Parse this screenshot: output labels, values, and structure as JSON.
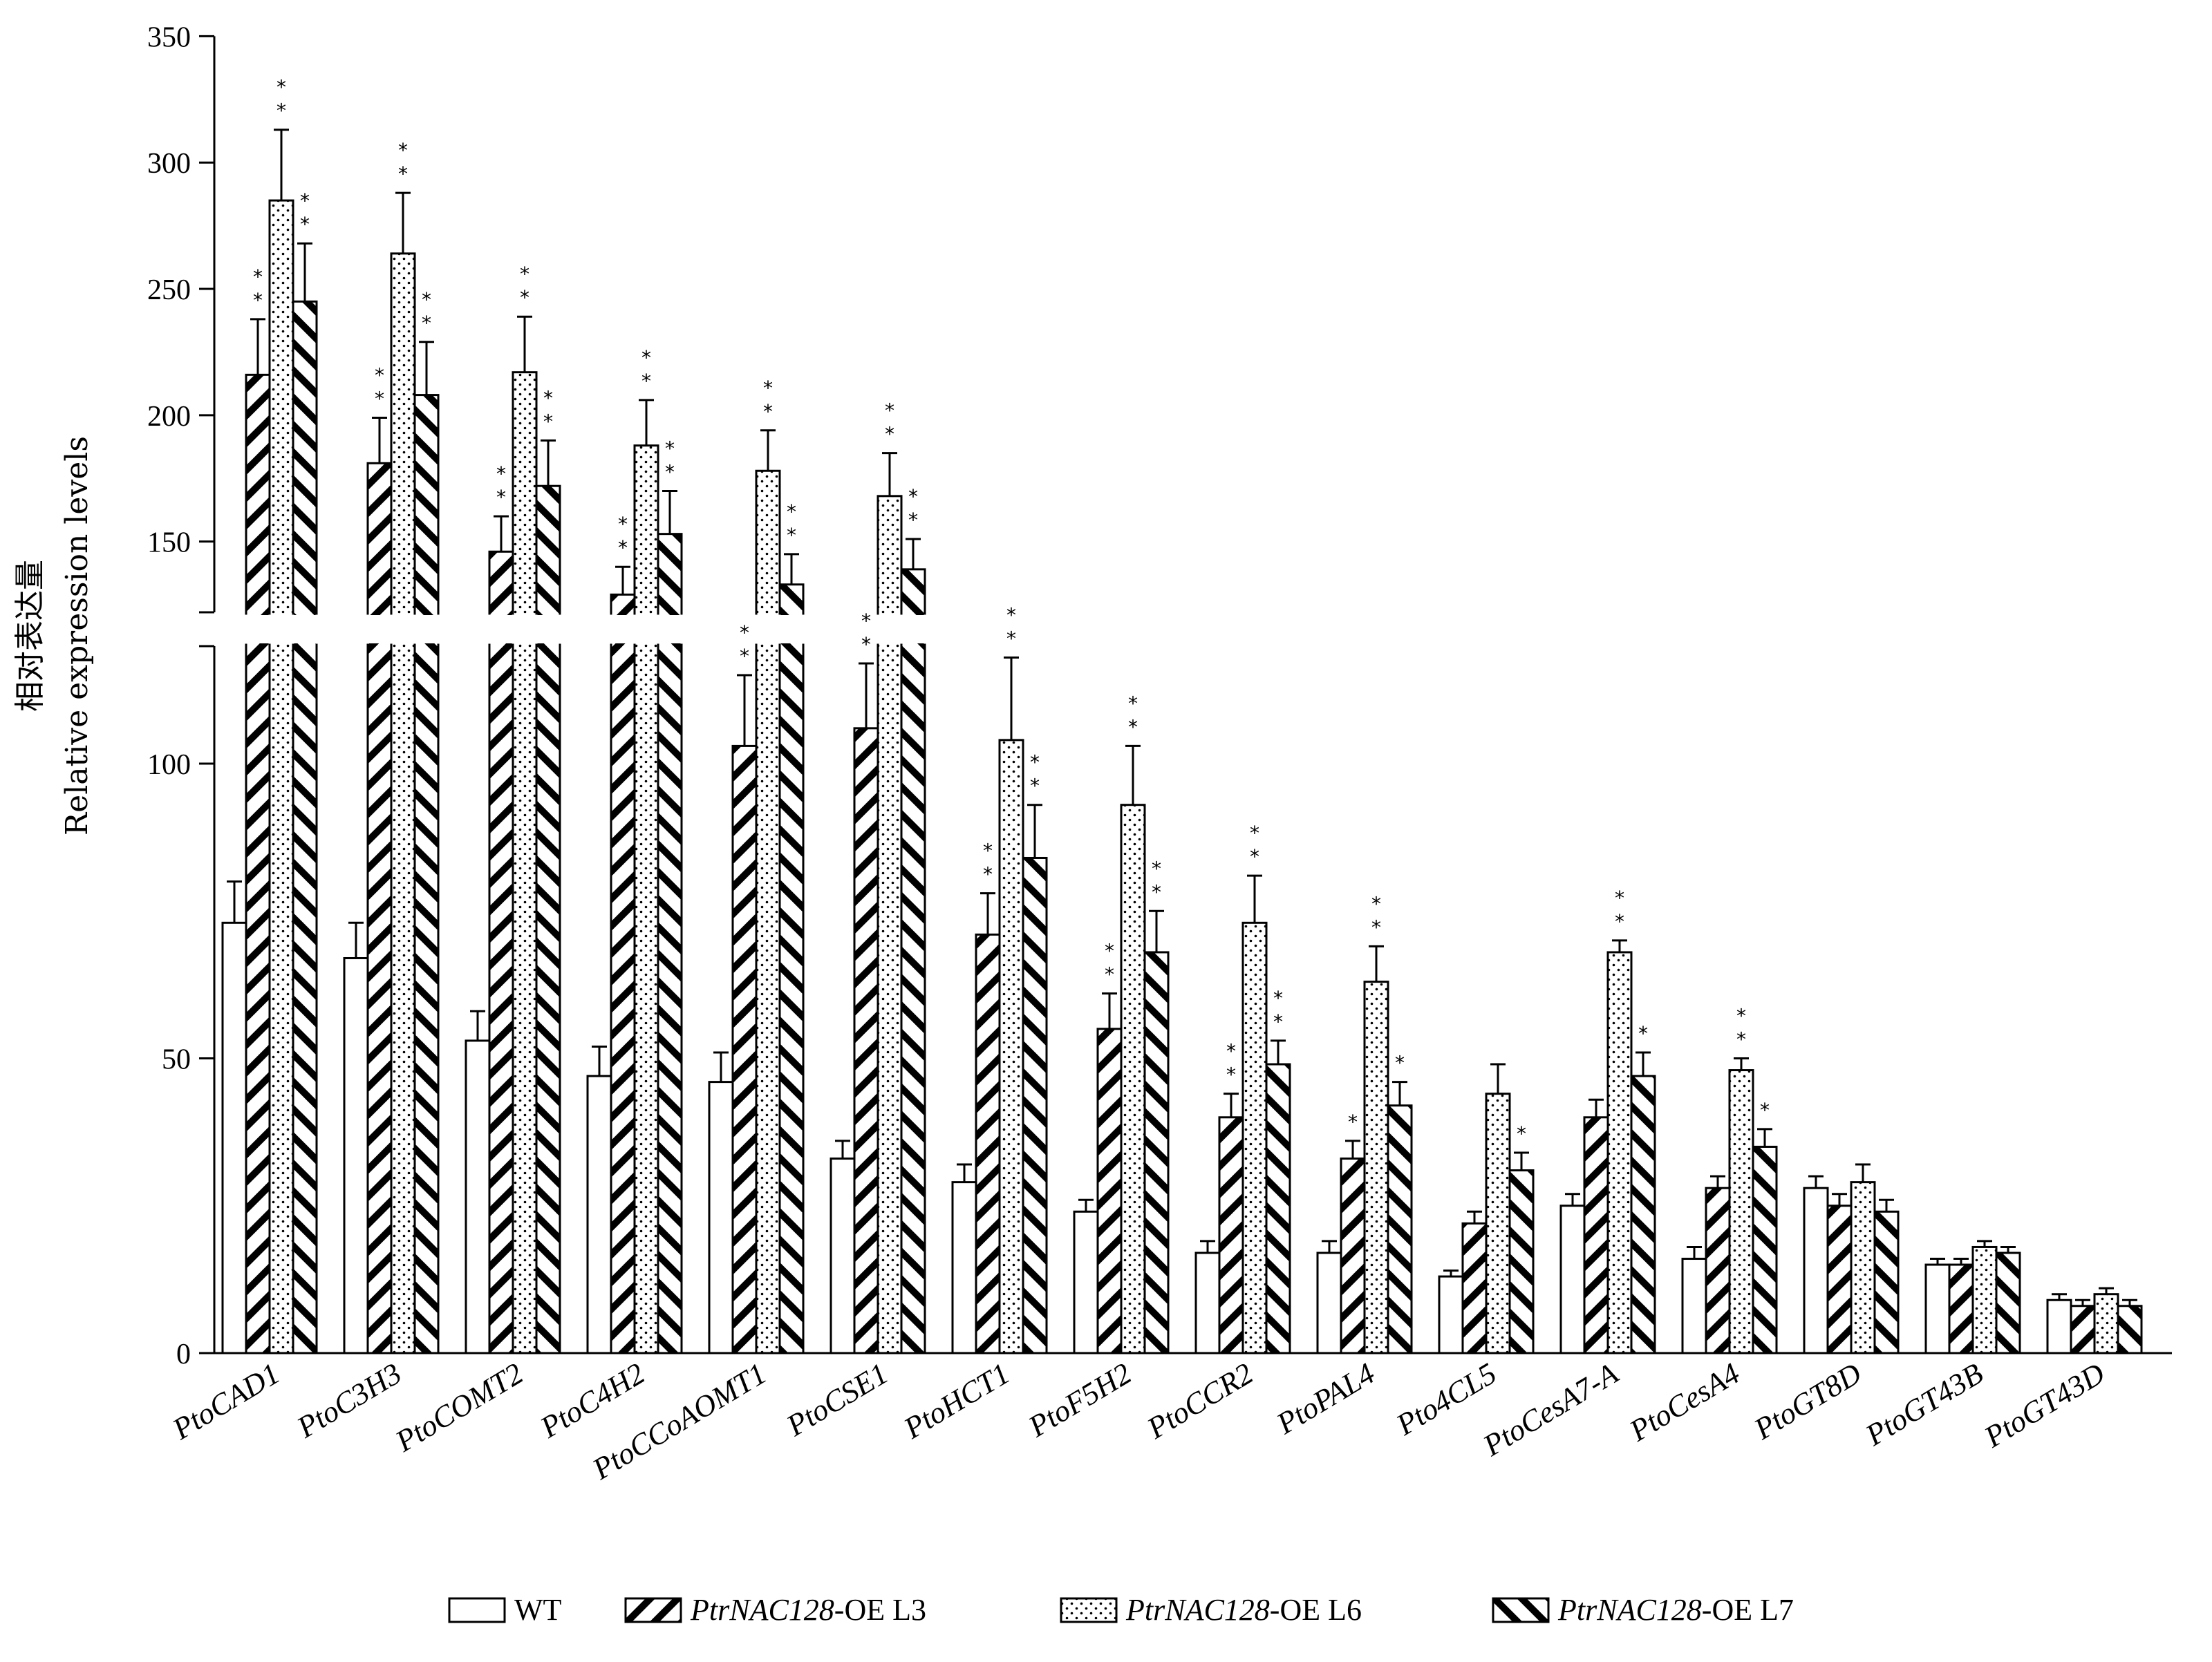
{
  "chart_data": {
    "type": "bar",
    "ylabel_cn": "相对表达量",
    "ylabel": "Relative expression levels",
    "xlabel": "",
    "y_axis_break": {
      "lower_range": [
        0,
        122
      ],
      "upper_range": [
        122,
        350
      ]
    },
    "yticks": [
      0,
      50,
      100,
      150,
      200,
      250,
      300,
      350
    ],
    "legend_position": "bottom",
    "categories": [
      "PtoCAD1",
      "PtoC3H3",
      "PtoCOMT2",
      "PtoC4H2",
      "PtoCCoAOMT1",
      "PtoCSE1",
      "PtoHCT1",
      "PtoF5H2",
      "PtoCCR2",
      "PtoPAL4",
      "Pto4CL5",
      "PtoCesA7-A",
      "PtoCesA4",
      "PtoGT8D",
      "PtoGT43B",
      "PtoGT43D"
    ],
    "series": [
      {
        "name": "WT",
        "legend_italic": "",
        "legend_rest": "WT",
        "pattern": "white",
        "values": [
          73,
          67,
          53,
          47,
          46,
          33,
          29,
          24,
          17,
          17,
          13,
          25,
          16,
          28,
          15,
          9
        ],
        "errors": [
          7,
          6,
          5,
          5,
          5,
          3,
          3,
          2,
          2,
          2,
          1,
          2,
          2,
          2,
          1,
          1
        ],
        "sig": [
          "",
          "",
          "",
          "",
          "",
          "",
          "",
          "",
          "",
          "",
          "",
          "",
          "",
          "",
          "",
          ""
        ]
      },
      {
        "name": "PtrNAC128-OE L3",
        "legend_italic": "PtrNAC128",
        "legend_rest": "-OE L3",
        "pattern": "hatch-right",
        "values": [
          216,
          181,
          146,
          129,
          103,
          106,
          71,
          55,
          40,
          33,
          22,
          40,
          28,
          25,
          15,
          8
        ],
        "errors": [
          22,
          18,
          14,
          11,
          12,
          11,
          7,
          6,
          4,
          3,
          2,
          3,
          2,
          2,
          1,
          1
        ],
        "sig": [
          "**",
          "**",
          "**",
          "**",
          "**",
          "**",
          "**",
          "**",
          "**",
          "*",
          "",
          "",
          "",
          "",
          "",
          ""
        ]
      },
      {
        "name": "PtrNAC128-OE L6",
        "legend_italic": "PtrNAC128",
        "legend_rest": "-OE L6",
        "pattern": "dots",
        "values": [
          285,
          264,
          217,
          188,
          178,
          168,
          104,
          93,
          73,
          63,
          44,
          68,
          48,
          29,
          18,
          10
        ],
        "errors": [
          28,
          24,
          22,
          18,
          16,
          17,
          14,
          10,
          8,
          6,
          5,
          2,
          2,
          3,
          1,
          1
        ],
        "sig": [
          "**",
          "**",
          "**",
          "**",
          "**",
          "**",
          "**",
          "**",
          "**",
          "**",
          "",
          "**",
          "**",
          "",
          "",
          ""
        ]
      },
      {
        "name": "PtrNAC128-OE L7",
        "legend_italic": "PtrNAC128",
        "legend_rest": "-OE L7",
        "pattern": "hatch-left",
        "values": [
          245,
          208,
          172,
          153,
          133,
          139,
          84,
          68,
          49,
          42,
          31,
          47,
          35,
          24,
          17,
          8
        ],
        "errors": [
          23,
          21,
          18,
          17,
          12,
          12,
          9,
          7,
          4,
          4,
          3,
          4,
          3,
          2,
          1,
          1
        ],
        "sig": [
          "**",
          "**",
          "**",
          "**",
          "**",
          "**",
          "**",
          "**",
          "**",
          "*",
          "*",
          "*",
          "*",
          "",
          "",
          ""
        ]
      }
    ]
  }
}
